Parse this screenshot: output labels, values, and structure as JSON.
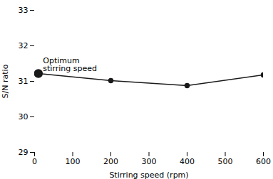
{
  "chart_data": {
    "type": "line",
    "x": [
      10,
      200,
      400,
      600
    ],
    "values": [
      31.22,
      31.02,
      30.88,
      31.18
    ],
    "xlim": [
      0,
      600
    ],
    "ylim": [
      29,
      33
    ],
    "xticks": [
      0,
      100,
      200,
      300,
      400,
      500,
      600
    ],
    "yticks": [
      29,
      30,
      31,
      32,
      33
    ],
    "xlabel": "Stirring speed (rpm)",
    "ylabel": "S/N ratio",
    "annotations": [
      {
        "text": "Optimum\nstirring speed",
        "x": 22,
        "y": 31.3
      }
    ],
    "color": "#1a1a1a",
    "marker": "o",
    "grid": false
  }
}
